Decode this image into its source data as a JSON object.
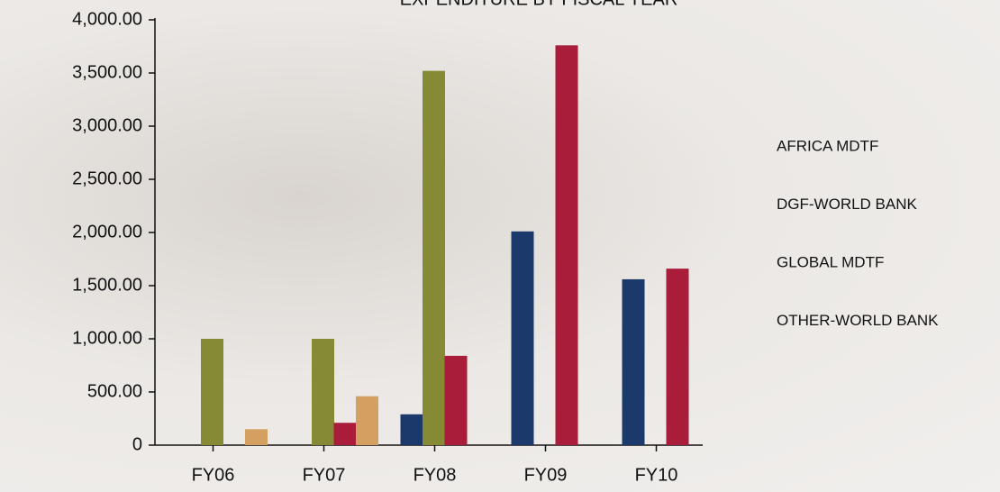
{
  "chart_data": {
    "type": "bar",
    "title": "EXPENDITURE BY FISCAL YEAR",
    "categories": [
      "FY06",
      "FY07",
      "FY08",
      "FY09",
      "FY10"
    ],
    "series": [
      {
        "name": "AFRICA MDTF",
        "color": "#1b3a6b",
        "values": [
          null,
          null,
          290,
          2010,
          1560
        ]
      },
      {
        "name": "DGF-WORLD BANK",
        "color": "#878a35",
        "values": [
          1000,
          1000,
          3520,
          null,
          null
        ]
      },
      {
        "name": "GLOBAL MDTF",
        "color": "#a91c3a",
        "values": [
          null,
          210,
          840,
          3760,
          1660
        ]
      },
      {
        "name": "OTHER-WORLD BANK",
        "color": "#d4a062",
        "values": [
          150,
          460,
          null,
          null,
          null
        ]
      }
    ],
    "ylim": [
      0,
      4000
    ],
    "yticks": [
      {
        "value": 0,
        "label": "0"
      },
      {
        "value": 500,
        "label": "500.00"
      },
      {
        "value": 1000,
        "label": "1,000.00"
      },
      {
        "value": 1500,
        "label": "1,500.00"
      },
      {
        "value": 2000,
        "label": "2,000.00"
      },
      {
        "value": 2500,
        "label": "2,500.00"
      },
      {
        "value": 3000,
        "label": "3,000.00"
      },
      {
        "value": 3500,
        "label": "3,500.00"
      },
      {
        "value": 4000,
        "label": "4,000.00"
      }
    ],
    "grid": false,
    "legend": "right"
  }
}
